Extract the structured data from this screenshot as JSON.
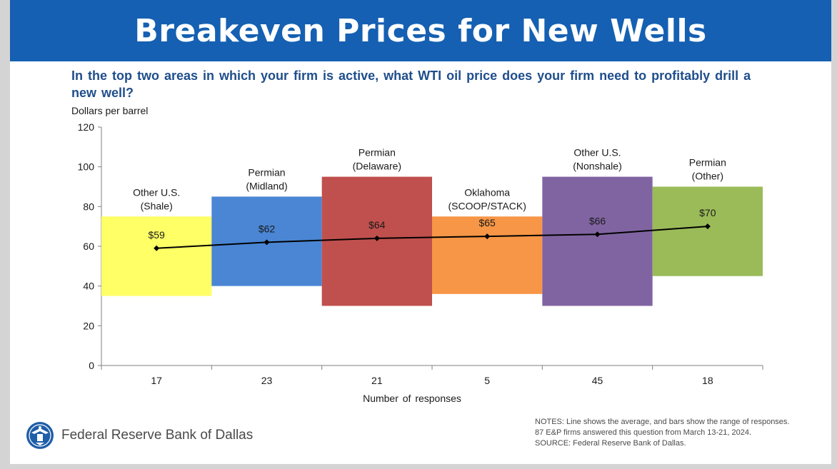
{
  "header": {
    "title": "Breakeven Prices for New Wells"
  },
  "question": "In the top two areas in which your firm is active, what WTI oil price does your firm need to profitably drill a new well?",
  "chart_data": {
    "type": "bar",
    "title": "",
    "ylabel": "Dollars per barrel",
    "xlabel": "Number of responses",
    "ylim": [
      0,
      120
    ],
    "yticks": [
      "0",
      "20",
      "40",
      "60",
      "80",
      "100",
      "120"
    ],
    "categories": [
      {
        "name_lines": [
          "Other U.S.",
          "(Shale)"
        ],
        "responses": "17",
        "low": 35,
        "high": 75,
        "average": 59,
        "average_label": "$59",
        "color": "#ffff66"
      },
      {
        "name_lines": [
          "Permian",
          "(Midland)"
        ],
        "responses": "23",
        "low": 40,
        "high": 85,
        "average": 62,
        "average_label": "$62",
        "color": "#4a86d4"
      },
      {
        "name_lines": [
          "Permian",
          "(Delaware)"
        ],
        "responses": "21",
        "low": 30,
        "high": 95,
        "average": 64,
        "average_label": "$64",
        "color": "#c0504d"
      },
      {
        "name_lines": [
          "Oklahoma",
          "(SCOOP/STACK)"
        ],
        "responses": "5",
        "low": 36,
        "high": 75,
        "average": 65,
        "average_label": "$65",
        "color": "#f79646"
      },
      {
        "name_lines": [
          "Other U.S.",
          "(Nonshale)"
        ],
        "responses": "45",
        "low": 30,
        "high": 95,
        "average": 66,
        "average_label": "$66",
        "color": "#8064a2"
      },
      {
        "name_lines": [
          "Permian",
          "(Other)"
        ],
        "responses": "18",
        "low": 45,
        "high": 90,
        "average": 70,
        "average_label": "$70",
        "color": "#9bbb59"
      }
    ],
    "line_series": {
      "name": "Average",
      "color": "#000000"
    }
  },
  "footer": {
    "org_name": "Federal Reserve Bank of Dallas",
    "notes": [
      "NOTES: Line shows the average, and bars show the range of responses.",
      "87 E&P firms answered this question from March 13-21, 2024.",
      "SOURCE: Federal Reserve Bank of Dallas."
    ]
  }
}
